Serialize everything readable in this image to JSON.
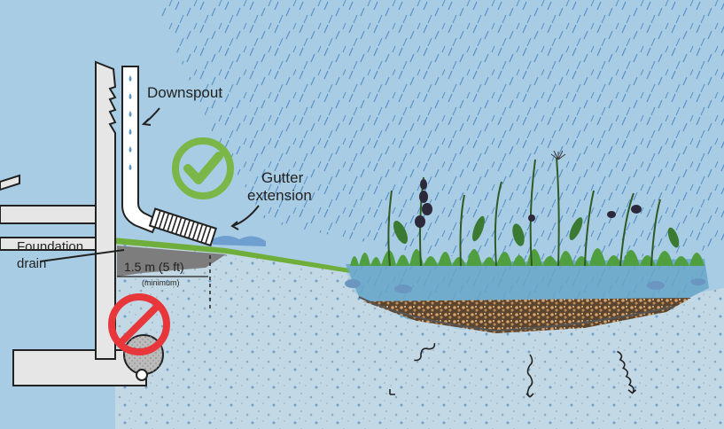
{
  "labels": {
    "downspout": "Downspout",
    "gutter_extension_line1": "Gutter",
    "gutter_extension_line2": "extension",
    "foundation_drain_line1": "Foundation",
    "foundation_drain_line2": "drain",
    "distance": "1.5 m (5 ft)",
    "distance_note": "(minimum)"
  },
  "colors": {
    "sky": "#a8cce3",
    "ground": "#c3d8e5",
    "wall": "#e6e6e6",
    "ok_green": "#7ab648",
    "no_red": "#e8373a",
    "water": "#5a98c8",
    "grass": "#6fae3a"
  },
  "icons": {
    "approved": "check-circle-icon",
    "prohibited": "prohibited-icon"
  }
}
